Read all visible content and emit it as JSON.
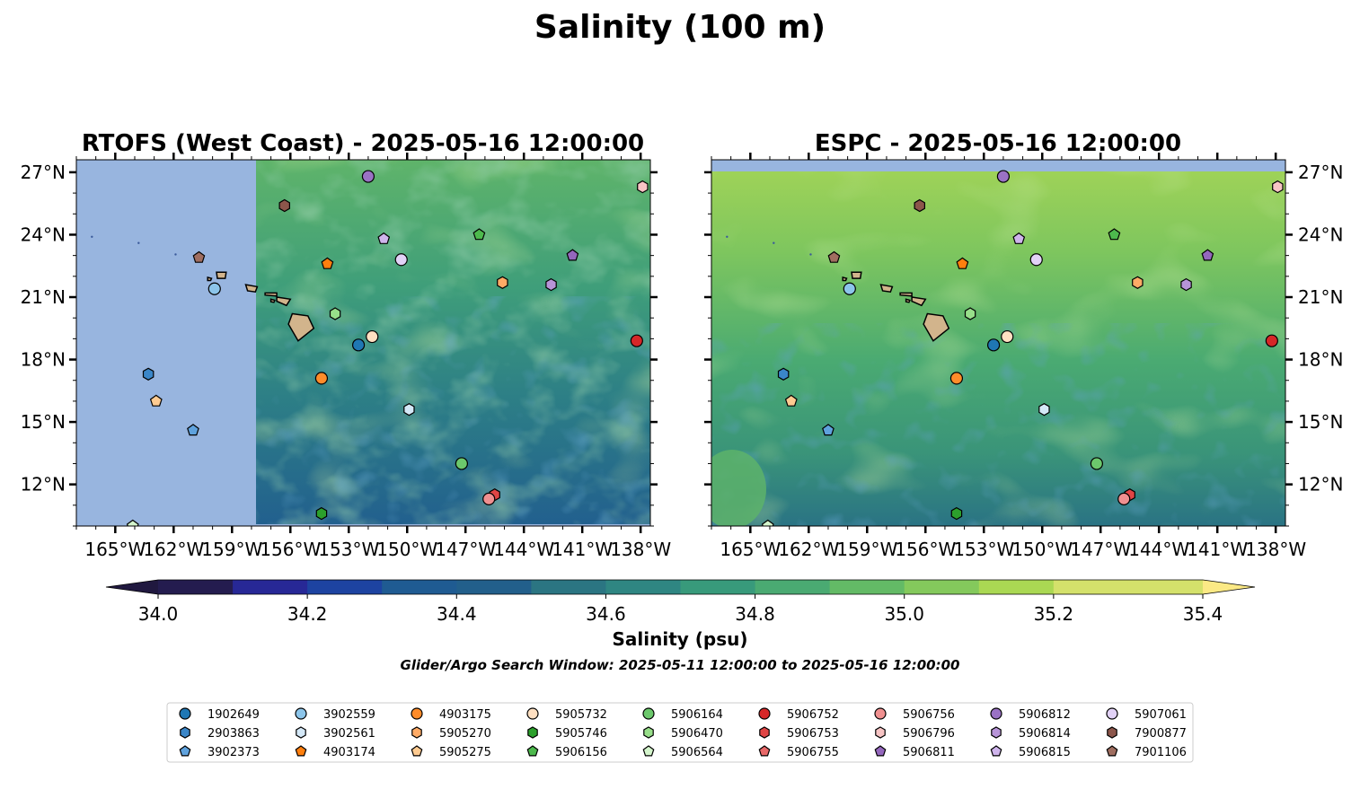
{
  "title": "Salinity (100 m)",
  "panels": [
    {
      "title": "RTOFS (West Coast) - 2025-05-16 12:00:00",
      "land_color": "#d2b48c",
      "nodata_color": "#98b5df"
    },
    {
      "title": "ESPC - 2025-05-16 12:00:00",
      "land_color": "#d2b48c",
      "nodata_color": "#98b5df"
    }
  ],
  "map": {
    "lon_range": [
      -167,
      -137.5
    ],
    "lat_range": [
      10,
      27.6
    ],
    "lon_ticks": [
      "165°W",
      "162°W",
      "159°W",
      "156°W",
      "153°W",
      "150°W",
      "147°W",
      "144°W",
      "141°W",
      "138°W"
    ],
    "lat_ticks": [
      "27°N",
      "24°N",
      "21°N",
      "18°N",
      "15°N",
      "12°N"
    ]
  },
  "colorbar": {
    "label": "Salinity (psu)",
    "range": [
      34.0,
      35.4
    ],
    "extend": "both",
    "tick_labels": [
      "34.0",
      "34.2",
      "34.4",
      "34.6",
      "34.8",
      "35.0",
      "35.2",
      "35.4"
    ],
    "colors": [
      "#241c4f",
      "#272896",
      "#1d43a1",
      "#1f5b92",
      "#225f8b",
      "#2b7582",
      "#2f8682",
      "#389a7b",
      "#4aaa72",
      "#63ba66",
      "#84c95c",
      "#aad853",
      "#d4e16b"
    ],
    "under_color": "#20183f",
    "over_color": "#fbe985"
  },
  "note": "Glider/Argo Search Window: 2025-05-11 12:00:00 to 2025-05-16 12:00:00",
  "legend": [
    {
      "id": "1902649",
      "marker": "circle",
      "color": "#1f77b4"
    },
    {
      "id": "2903863",
      "marker": "hexagon",
      "color": "#3a86c8"
    },
    {
      "id": "3902373",
      "marker": "pentagon",
      "color": "#5fa2dd"
    },
    {
      "id": "3902559",
      "marker": "circle",
      "color": "#8cc5ea"
    },
    {
      "id": "3902561",
      "marker": "hexagon",
      "color": "#d4e8f7"
    },
    {
      "id": "4903174",
      "marker": "pentagon",
      "color": "#ff7f0e"
    },
    {
      "id": "4903175",
      "marker": "circle",
      "color": "#ff8c2a"
    },
    {
      "id": "5905270",
      "marker": "hexagon",
      "color": "#ffab66"
    },
    {
      "id": "5905275",
      "marker": "pentagon",
      "color": "#ffcb91"
    },
    {
      "id": "5905732",
      "marker": "circle",
      "color": "#ffe0c2"
    },
    {
      "id": "5905746",
      "marker": "hexagon",
      "color": "#2ca02c"
    },
    {
      "id": "5906156",
      "marker": "pentagon",
      "color": "#4db94d"
    },
    {
      "id": "5906164",
      "marker": "circle",
      "color": "#6cc86c"
    },
    {
      "id": "5906470",
      "marker": "hexagon",
      "color": "#98df8a"
    },
    {
      "id": "5906564",
      "marker": "pentagon",
      "color": "#d4f5cc"
    },
    {
      "id": "5906752",
      "marker": "circle",
      "color": "#d62728"
    },
    {
      "id": "5906753",
      "marker": "hexagon",
      "color": "#e04545"
    },
    {
      "id": "5906755",
      "marker": "pentagon",
      "color": "#e86868"
    },
    {
      "id": "5906756",
      "marker": "circle",
      "color": "#f09090"
    },
    {
      "id": "5906796",
      "marker": "hexagon",
      "color": "#f7c4c4"
    },
    {
      "id": "5906811",
      "marker": "pentagon",
      "color": "#9467bd"
    },
    {
      "id": "5906812",
      "marker": "circle",
      "color": "#9a72c4"
    },
    {
      "id": "5906814",
      "marker": "hexagon",
      "color": "#b794d8"
    },
    {
      "id": "5906815",
      "marker": "pentagon",
      "color": "#cfb4ec"
    },
    {
      "id": "5907061",
      "marker": "circle",
      "color": "#e2d2f7"
    },
    {
      "id": "7900877",
      "marker": "hexagon",
      "color": "#8c564b"
    },
    {
      "id": "7901106",
      "marker": "pentagon",
      "color": "#a06e60"
    }
  ],
  "platforms": [
    {
      "id": "5906812",
      "lon": -152.0,
      "lat": 26.8
    },
    {
      "id": "7900877",
      "lon": -156.3,
      "lat": 25.4
    },
    {
      "id": "5906796",
      "lon": -137.9,
      "lat": 26.3
    },
    {
      "id": "5906815",
      "lon": -151.2,
      "lat": 23.8
    },
    {
      "id": "5906156",
      "lon": -146.3,
      "lat": 24.0
    },
    {
      "id": "7901106",
      "lon": -160.7,
      "lat": 22.9
    },
    {
      "id": "4903174",
      "lon": -154.1,
      "lat": 22.6
    },
    {
      "id": "5907061",
      "lon": -150.3,
      "lat": 22.8
    },
    {
      "id": "5906811",
      "lon": -141.5,
      "lat": 23.0
    },
    {
      "id": "5905270",
      "lon": -145.1,
      "lat": 21.7
    },
    {
      "id": "5906814",
      "lon": -142.6,
      "lat": 21.6
    },
    {
      "id": "3902559",
      "lon": -159.9,
      "lat": 21.4
    },
    {
      "id": "5906470",
      "lon": -153.7,
      "lat": 20.2
    },
    {
      "id": "5905732",
      "lon": -151.8,
      "lat": 19.1
    },
    {
      "id": "1902649",
      "lon": -152.5,
      "lat": 18.7
    },
    {
      "id": "5906752",
      "lon": -138.2,
      "lat": 18.9
    },
    {
      "id": "2903863",
      "lon": -163.3,
      "lat": 17.3
    },
    {
      "id": "4903175",
      "lon": -154.4,
      "lat": 17.1
    },
    {
      "id": "5905275",
      "lon": -162.9,
      "lat": 16.0
    },
    {
      "id": "3902561",
      "lon": -149.9,
      "lat": 15.6
    },
    {
      "id": "3902373",
      "lon": -161.0,
      "lat": 14.6
    },
    {
      "id": "5906164",
      "lon": -147.2,
      "lat": 13.0
    },
    {
      "id": "5906753",
      "lon": -145.5,
      "lat": 11.5
    },
    {
      "id": "5906756",
      "lon": -145.8,
      "lat": 11.3
    },
    {
      "id": "5905746",
      "lon": -154.4,
      "lat": 10.6
    },
    {
      "id": "5906564",
      "lon": -164.1,
      "lat": 10.0
    }
  ]
}
